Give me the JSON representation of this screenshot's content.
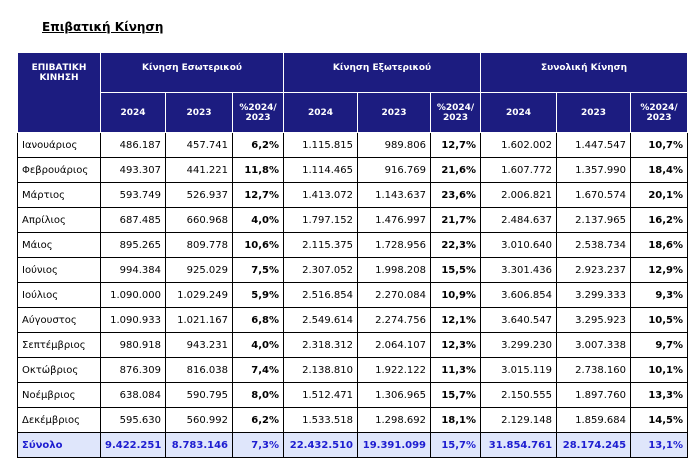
{
  "subtitle": "Επιβατική Κίνηση",
  "table": {
    "corner": "ΕΠΙΒΑΤΙΚΗ ΚΙΝΗΣΗ",
    "groups": [
      "Κίνηση Εσωτερικού",
      "Κίνηση Εξωτερικού",
      "Συνολική Κίνηση"
    ],
    "subheaders": [
      "2024",
      "2023",
      "%2024/ 2023"
    ],
    "rows": [
      [
        "Ιανουάριος",
        "486.187",
        "457.741",
        "6,2%",
        "1.115.815",
        "989.806",
        "12,7%",
        "1.602.002",
        "1.447.547",
        "10,7%"
      ],
      [
        "Φεβρουάριος",
        "493.307",
        "441.221",
        "11,8%",
        "1.114.465",
        "916.769",
        "21,6%",
        "1.607.772",
        "1.357.990",
        "18,4%"
      ],
      [
        "Μάρτιος",
        "593.749",
        "526.937",
        "12,7%",
        "1.413.072",
        "1.143.637",
        "23,6%",
        "2.006.821",
        "1.670.574",
        "20,1%"
      ],
      [
        "Απρίλιος",
        "687.485",
        "660.968",
        "4,0%",
        "1.797.152",
        "1.476.997",
        "21,7%",
        "2.484.637",
        "2.137.965",
        "16,2%"
      ],
      [
        "Μάιος",
        "895.265",
        "809.778",
        "10,6%",
        "2.115.375",
        "1.728.956",
        "22,3%",
        "3.010.640",
        "2.538.734",
        "18,6%"
      ],
      [
        "Ιούνιος",
        "994.384",
        "925.029",
        "7,5%",
        "2.307.052",
        "1.998.208",
        "15,5%",
        "3.301.436",
        "2.923.237",
        "12,9%"
      ],
      [
        "Ιούλιος",
        "1.090.000",
        "1.029.249",
        "5,9%",
        "2.516.854",
        "2.270.084",
        "10,9%",
        "3.606.854",
        "3.299.333",
        "9,3%"
      ],
      [
        "Αύγουστος",
        "1.090.933",
        "1.021.167",
        "6,8%",
        "2.549.614",
        "2.274.756",
        "12,1%",
        "3.640.547",
        "3.295.923",
        "10,5%"
      ],
      [
        "Σεπτέμβριος",
        "980.918",
        "943.231",
        "4,0%",
        "2.318.312",
        "2.064.107",
        "12,3%",
        "3.299.230",
        "3.007.338",
        "9,7%"
      ],
      [
        "Οκτώβριος",
        "876.309",
        "816.038",
        "7,4%",
        "2.138.810",
        "1.922.122",
        "11,3%",
        "3.015.119",
        "2.738.160",
        "10,1%"
      ],
      [
        "Νοέμβριος",
        "638.084",
        "590.795",
        "8,0%",
        "1.512.471",
        "1.306.965",
        "15,7%",
        "2.150.555",
        "1.897.760",
        "13,3%"
      ],
      [
        "Δεκέμβριος",
        "595.630",
        "560.992",
        "6,2%",
        "1.533.518",
        "1.298.692",
        "18,1%",
        "2.129.148",
        "1.859.684",
        "14,5%"
      ]
    ],
    "total": [
      "Σύνολο",
      "9.422.251",
      "8.783.146",
      "7,3%",
      "22.432.510",
      "19.391.099",
      "15,7%",
      "31.854.761",
      "28.174.245",
      "13,1%"
    ]
  }
}
